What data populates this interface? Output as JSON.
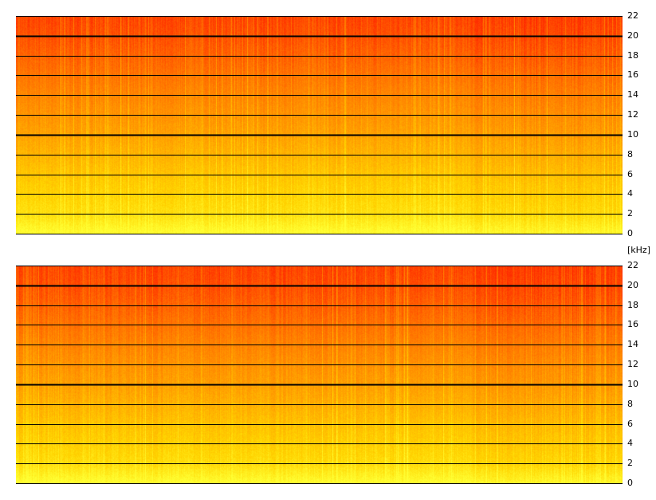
{
  "chart_data": [
    {
      "type": "heatmap",
      "title": "",
      "xlabel": "",
      "ylabel": "[kHz]",
      "ylim": [
        0,
        22
      ],
      "yticks": [
        0,
        2,
        4,
        6,
        8,
        10,
        12,
        14,
        16,
        18,
        20,
        22
      ],
      "major_gridlines": [
        10,
        20
      ],
      "colormap": [
        "#ff2a00",
        "#ff6a00",
        "#ff9e00",
        "#ffd400",
        "#ffff33"
      ],
      "intensity_profile": {
        "kHz": [
          0,
          2,
          4,
          6,
          8,
          10,
          12,
          14,
          16,
          18,
          20,
          22
        ],
        "relative_level": [
          1.0,
          0.82,
          0.75,
          0.68,
          0.6,
          0.52,
          0.45,
          0.38,
          0.3,
          0.22,
          0.15,
          0.1
        ]
      }
    },
    {
      "type": "heatmap",
      "title": "",
      "xlabel": "",
      "ylabel": "[kHz]",
      "ylim": [
        0,
        22
      ],
      "yticks": [
        0,
        2,
        4,
        6,
        8,
        10,
        12,
        14,
        16,
        18,
        20,
        22
      ],
      "major_gridlines": [
        10,
        20
      ],
      "colormap": [
        "#ff2a00",
        "#ff6a00",
        "#ff9e00",
        "#ffd400",
        "#ffff33"
      ],
      "intensity_profile": {
        "kHz": [
          0,
          2,
          4,
          6,
          8,
          10,
          12,
          14,
          16,
          18,
          20,
          22
        ],
        "relative_level": [
          1.0,
          0.8,
          0.73,
          0.66,
          0.58,
          0.5,
          0.44,
          0.37,
          0.29,
          0.21,
          0.14,
          0.1
        ]
      }
    }
  ],
  "unit_label": "[kHz]"
}
